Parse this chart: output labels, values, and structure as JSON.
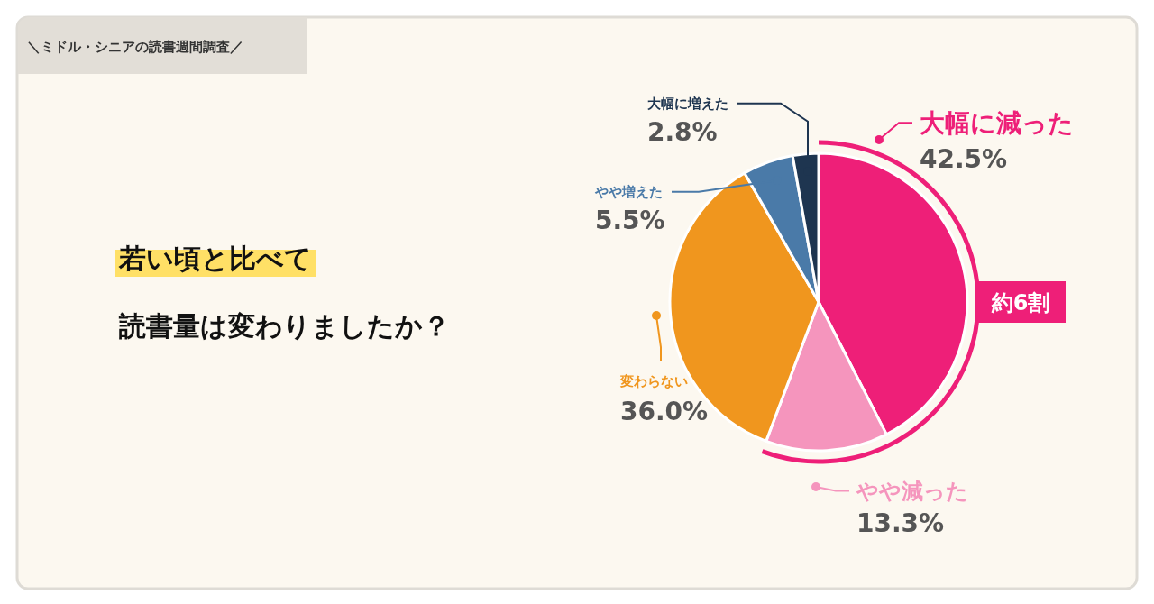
{
  "chart_data": {
    "type": "pie",
    "title": "若い頃と比べて",
    "subtitle": "読書量は変わりましたか？",
    "legend": "right",
    "annotations": [
      "＼ミドル・シニアの読書週間調査／",
      "約6割"
    ],
    "categories": [
      "大幅に減った",
      "やや減った",
      "変わらない",
      "やや増えた",
      "大幅に増えた"
    ],
    "values": [
      42.5,
      13.3,
      36.0,
      5.5,
      2.8
    ],
    "colors": [
      "#ee1f78",
      "#f595bd",
      "#f0961e",
      "#4a7aa8",
      "#1e3550"
    ],
    "value_labels": [
      "42.5%",
      "13.3%",
      "36.0%",
      "5.5%",
      "2.8%"
    ]
  }
}
